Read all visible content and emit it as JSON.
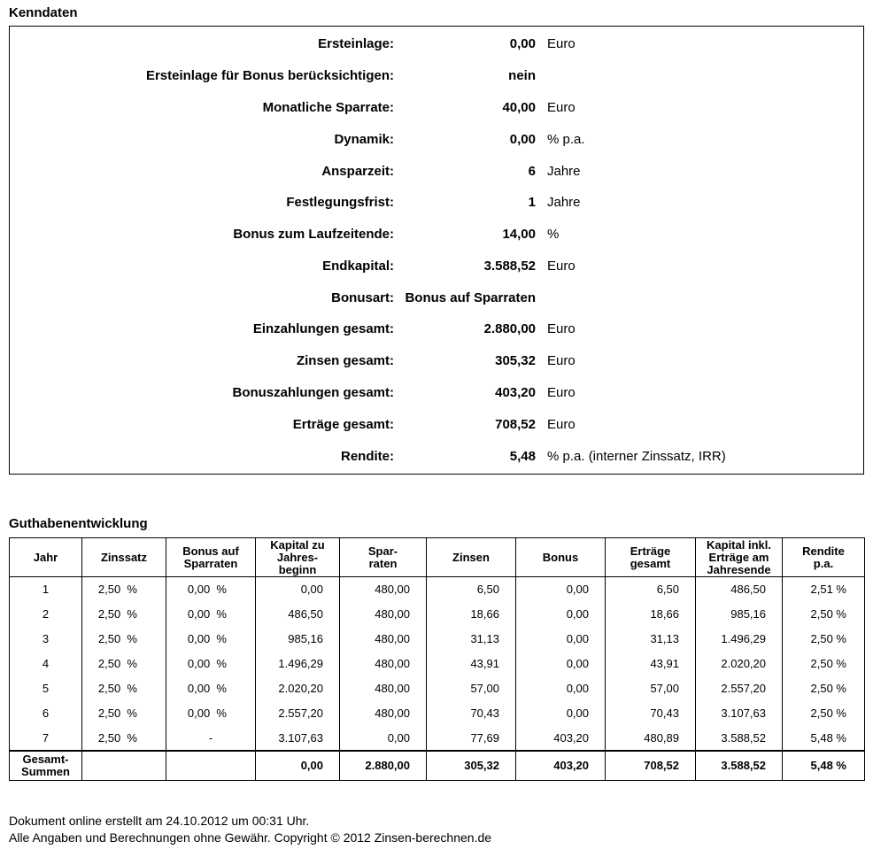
{
  "colors": {
    "text": "#000000",
    "border": "#000000",
    "background": "#ffffff"
  },
  "titles": {
    "kenndaten": "Kenndaten",
    "guthaben": "Guthabenentwicklung"
  },
  "kenndaten": {
    "rows": [
      {
        "label": "Ersteinlage:",
        "value": "0,00",
        "unit": "Euro"
      },
      {
        "label": "Ersteinlage für Bonus berücksichtigen:",
        "value": "nein",
        "unit": ""
      },
      {
        "label": "Monatliche Sparrate:",
        "value": "40,00",
        "unit": "Euro"
      },
      {
        "label": "Dynamik:",
        "value": "0,00",
        "unit": "% p.a."
      },
      {
        "label": "Ansparzeit:",
        "value": "6",
        "unit": "Jahre"
      },
      {
        "label": "Festlegungsfrist:",
        "value": "1",
        "unit": "Jahre"
      },
      {
        "label": "Bonus zum Laufzeitende:",
        "value": "14,00",
        "unit": "%"
      },
      {
        "label": "Endkapital:",
        "value": "3.588,52",
        "unit": "Euro"
      },
      {
        "label": "Bonusart:",
        "value": "Bonus auf Sparraten",
        "unit": ""
      },
      {
        "label": "Einzahlungen gesamt:",
        "value": "2.880,00",
        "unit": "Euro"
      },
      {
        "label": "Zinsen gesamt:",
        "value": "305,32",
        "unit": "Euro"
      },
      {
        "label": "Bonuszahlungen gesamt:",
        "value": "403,20",
        "unit": "Euro"
      },
      {
        "label": "Erträge gesamt:",
        "value": "708,52",
        "unit": "Euro"
      },
      {
        "label": "Rendite:",
        "value": "5,48",
        "unit": "% p.a. (interner Zinssatz, IRR)"
      }
    ]
  },
  "guthaben": {
    "headers": [
      "Jahr",
      "Zinssatz",
      "Bonus auf\nSparraten",
      "Kapital zu\nJahres-\nbeginn",
      "Spar-\nraten",
      "Zinsen",
      "Bonus",
      "Erträge\ngesamt",
      "Kapital inkl.\nErträge am\nJahresende",
      "Rendite\np.a."
    ],
    "rows": [
      [
        "1",
        "2,50  %",
        "0,00  %",
        "0,00",
        "480,00",
        "6,50",
        "0,00",
        "6,50",
        "486,50",
        "2,51 %"
      ],
      [
        "2",
        "2,50  %",
        "0,00  %",
        "486,50",
        "480,00",
        "18,66",
        "0,00",
        "18,66",
        "985,16",
        "2,50 %"
      ],
      [
        "3",
        "2,50  %",
        "0,00  %",
        "985,16",
        "480,00",
        "31,13",
        "0,00",
        "31,13",
        "1.496,29",
        "2,50 %"
      ],
      [
        "4",
        "2,50  %",
        "0,00  %",
        "1.496,29",
        "480,00",
        "43,91",
        "0,00",
        "43,91",
        "2.020,20",
        "2,50 %"
      ],
      [
        "5",
        "2,50  %",
        "0,00  %",
        "2.020,20",
        "480,00",
        "57,00",
        "0,00",
        "57,00",
        "2.557,20",
        "2,50 %"
      ],
      [
        "6",
        "2,50  %",
        "0,00  %",
        "2.557,20",
        "480,00",
        "70,43",
        "0,00",
        "70,43",
        "3.107,63",
        "2,50 %"
      ],
      [
        "7",
        "2,50  %",
        "-",
        "3.107,63",
        "0,00",
        "77,69",
        "403,20",
        "480,89",
        "3.588,52",
        "5,48 %"
      ]
    ],
    "total": [
      "Gesamt-\nSummen",
      "",
      "",
      "0,00",
      "2.880,00",
      "305,32",
      "403,20",
      "708,52",
      "3.588,52",
      "5,48 %"
    ]
  },
  "footer": {
    "line1": "Dokument online erstellt am 24.10.2012 um 00:31 Uhr.",
    "line2": "Alle Angaben und Berechnungen ohne Gewähr. Copyright © 2012 Zinsen-berechnen.de"
  }
}
